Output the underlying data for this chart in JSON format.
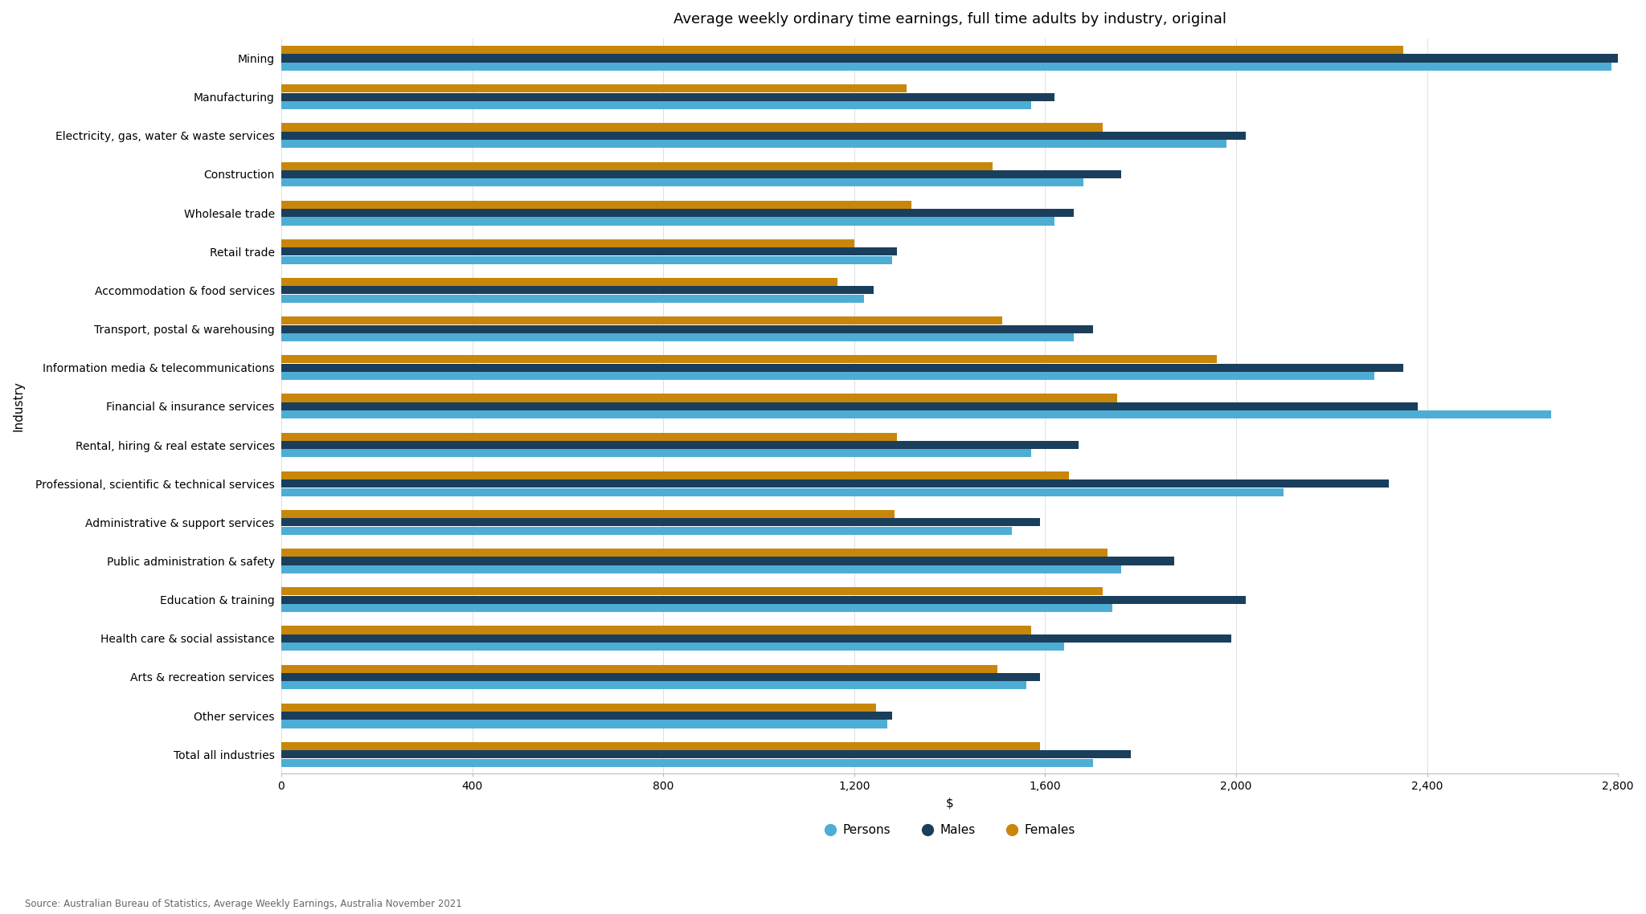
{
  "title": "Average weekly ordinary time earnings, full time adults by industry, original",
  "xlabel": "$",
  "ylabel": "Industry",
  "source": "Source: Australian Bureau of Statistics, Average Weekly Earnings, Australia November 2021",
  "categories": [
    "Mining",
    "Manufacturing",
    "Electricity, gas, water & waste services",
    "Construction",
    "Wholesale trade",
    "Retail trade",
    "Accommodation & food services",
    "Transport, postal & warehousing",
    "Information media & telecommunications",
    "Financial & insurance services",
    "Rental, hiring & real estate services",
    "Professional, scientific & technical services",
    "Administrative & support services",
    "Public administration & safety",
    "Education & training",
    "Health care & social assistance",
    "Arts & recreation services",
    "Other services",
    "Total all industries"
  ],
  "persons": [
    2786,
    1570,
    1980,
    1680,
    1620,
    1280,
    1220,
    1660,
    2290,
    2660,
    1570,
    2100,
    1530,
    1760,
    1740,
    1640,
    1560,
    1270,
    1700
  ],
  "males": [
    2800,
    1620,
    2020,
    1760,
    1660,
    1290,
    1240,
    1700,
    2350,
    2380,
    1670,
    2320,
    1590,
    1870,
    2020,
    1990,
    1590,
    1280,
    1780
  ],
  "females": [
    2350,
    1310,
    1720,
    1490,
    1320,
    1200,
    1165,
    1510,
    1960,
    1750,
    1290,
    1650,
    1285,
    1730,
    1720,
    1570,
    1500,
    1245,
    1590
  ],
  "color_persons": "#4EADD4",
  "color_males": "#1A3F5C",
  "color_females": "#C8870A",
  "xlim_max": 2800,
  "xticks": [
    0,
    400,
    800,
    1200,
    1600,
    2000,
    2400,
    2800
  ],
  "xtick_labels": [
    "0",
    "400",
    "800",
    "1,200",
    "1,600",
    "2,000",
    "2,400",
    "2,800"
  ],
  "background_color": "#FFFFFF",
  "grid_color": "#E0E0E0",
  "title_fontsize": 13,
  "tick_fontsize": 10,
  "legend_fontsize": 11
}
